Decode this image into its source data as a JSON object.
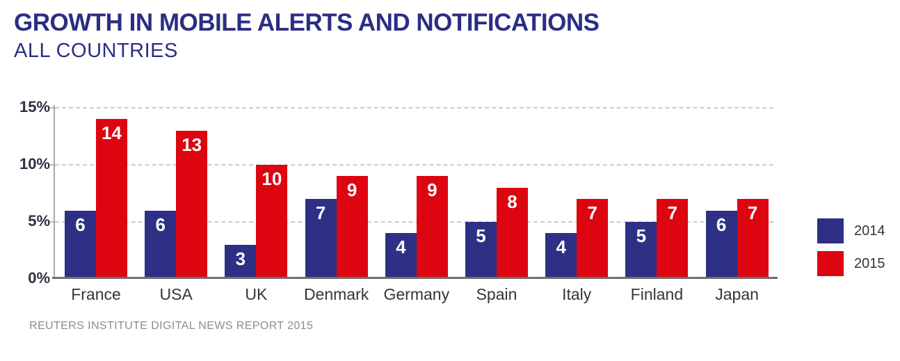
{
  "header": {
    "title": "GROWTH IN MOBILE ALERTS AND NOTIFICATIONS",
    "subtitle": "ALL COUNTRIES"
  },
  "chart_data": {
    "type": "bar",
    "title": "GROWTH IN MOBILE ALERTS AND NOTIFICATIONS",
    "subtitle": "ALL COUNTRIES",
    "categories": [
      "France",
      "USA",
      "UK",
      "Denmark",
      "Germany",
      "Spain",
      "Italy",
      "Finland",
      "Japan"
    ],
    "series": [
      {
        "name": "2014",
        "color": "#2d3084",
        "values": [
          6,
          6,
          3,
          7,
          4,
          5,
          4,
          5,
          6
        ]
      },
      {
        "name": "2015",
        "color": "#dd0510",
        "values": [
          14,
          13,
          10,
          9,
          9,
          8,
          7,
          7,
          7
        ]
      }
    ],
    "unit": "%",
    "ylim": [
      0,
      15
    ],
    "yticks": [
      0,
      5,
      10,
      15
    ],
    "ytick_labels": [
      "0%",
      "5%",
      "10%",
      "15%"
    ],
    "grid": "horizontal-dashed",
    "legend_position": "right",
    "value_labels": "inside-top-white"
  },
  "legend": {
    "items": [
      {
        "label": "2014",
        "color": "#2d3084"
      },
      {
        "label": "2015",
        "color": "#dd0510"
      }
    ]
  },
  "footer": {
    "source": "REUTERS INSTITUTE DIGITAL NEWS REPORT 2015"
  },
  "colors": {
    "title_navy": "#2b2e83",
    "bar_blue_2014": "#2d3084",
    "bar_red_2015": "#dd0510",
    "axis_text": "#2f3040",
    "category_text": "#34343c",
    "gridline": "#cccccc",
    "y_axis_line": "#a8a8a8",
    "x_axis_line": "#6f6f6f",
    "value_label_text": "#ffffff",
    "source_text": "#8c8c8c"
  }
}
